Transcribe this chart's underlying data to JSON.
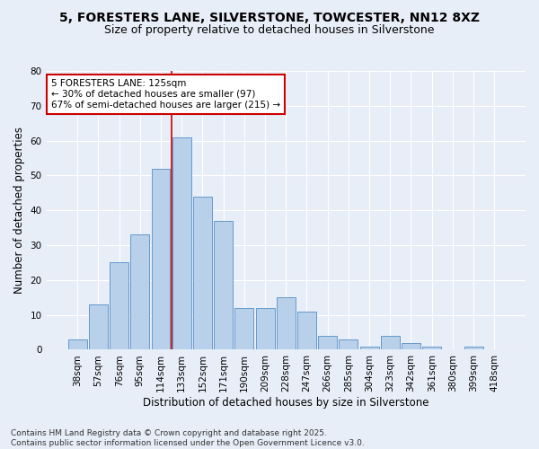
{
  "title": "5, FORESTERS LANE, SILVERSTONE, TOWCESTER, NN12 8XZ",
  "subtitle": "Size of property relative to detached houses in Silverstone",
  "xlabel": "Distribution of detached houses by size in Silverstone",
  "ylabel": "Number of detached properties",
  "categories": [
    "38sqm",
    "57sqm",
    "76sqm",
    "95sqm",
    "114sqm",
    "133sqm",
    "152sqm",
    "171sqm",
    "190sqm",
    "209sqm",
    "228sqm",
    "247sqm",
    "266sqm",
    "285sqm",
    "304sqm",
    "323sqm",
    "342sqm",
    "361sqm",
    "380sqm",
    "399sqm",
    "418sqm"
  ],
  "values": [
    3,
    13,
    25,
    33,
    52,
    61,
    44,
    37,
    12,
    12,
    15,
    11,
    4,
    3,
    1,
    4,
    2,
    1,
    0,
    1,
    0
  ],
  "bar_color": "#b8d0ea",
  "bar_edge_color": "#6699cc",
  "annotation_text_line1": "5 FORESTERS LANE: 125sqm",
  "annotation_text_line2": "← 30% of detached houses are smaller (97)",
  "annotation_text_line3": "67% of semi-detached houses are larger (215) →",
  "annotation_box_facecolor": "#ffffff",
  "annotation_box_edgecolor": "#cc0000",
  "vline_color": "#cc0000",
  "vline_x": 4.5,
  "ylim": [
    0,
    80
  ],
  "yticks": [
    0,
    10,
    20,
    30,
    40,
    50,
    60,
    70,
    80
  ],
  "bg_color": "#e8eef8",
  "grid_color": "#ffffff",
  "footer_line1": "Contains HM Land Registry data © Crown copyright and database right 2025.",
  "footer_line2": "Contains public sector information licensed under the Open Government Licence v3.0.",
  "title_fontsize": 10,
  "subtitle_fontsize": 9,
  "axis_label_fontsize": 8.5,
  "tick_fontsize": 7.5,
  "annotation_fontsize": 7.5,
  "footer_fontsize": 6.5,
  "ylabel_fontsize": 8.5
}
